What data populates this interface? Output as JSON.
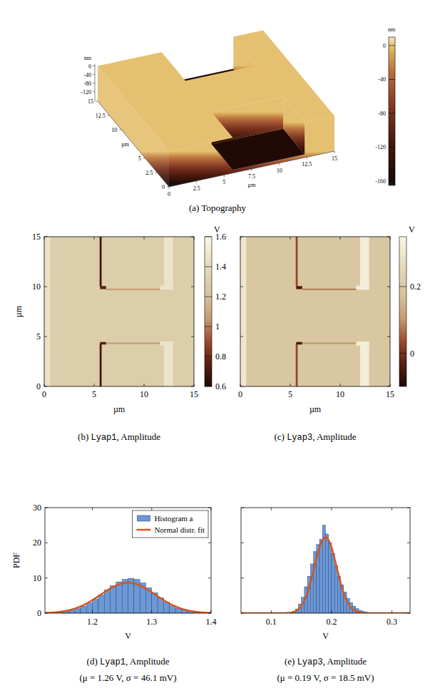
{
  "chart_data": [
    {
      "type": "surface",
      "title": "(a) Topography",
      "xlabel": "µm",
      "ylabel": "µm",
      "zlabel": "nm",
      "xlim": [
        0,
        15
      ],
      "ylim": [
        0,
        15
      ],
      "zlim": [
        -165,
        10
      ],
      "xticks": [
        0,
        2.5,
        5,
        7.5,
        10,
        12.5,
        15
      ],
      "yticks": [
        0,
        2.5,
        5,
        10,
        12.5,
        15
      ],
      "zticks": [
        0,
        -40,
        -80,
        -120
      ],
      "level": 0,
      "regions": [
        {
          "x": [
            5.8,
            12.3
          ],
          "y": [
            0,
            4.5
          ],
          "z": -150
        },
        {
          "x": [
            5.8,
            12.3
          ],
          "y": [
            10,
            15
          ],
          "z": -150
        }
      ],
      "colorbar_label": "nm",
      "colorbar_range": [
        -165,
        10
      ],
      "colorbar_ticks": [
        0,
        -40,
        -80,
        -120,
        -160
      ]
    },
    {
      "type": "heatmap",
      "title": "(b) Lyap1, Amplitude",
      "xlabel": "µm",
      "ylabel": "µm",
      "xlim": [
        0,
        15
      ],
      "ylim": [
        0,
        15
      ],
      "xticks": [
        0,
        5,
        10,
        15
      ],
      "yticks": [
        0,
        5,
        10,
        15
      ],
      "background": 1.3,
      "regions": [
        {
          "x": [
            0,
            0.6
          ],
          "y": [
            0,
            15
          ],
          "value": 1.45
        },
        {
          "x": [
            12,
            12.9
          ],
          "y": [
            0,
            4.5
          ],
          "value": 1.47
        },
        {
          "x": [
            11.6,
            12.9
          ],
          "y": [
            4.1,
            4.5
          ],
          "value": 1.47
        },
        {
          "x": [
            12,
            12.9
          ],
          "y": [
            9.7,
            15
          ],
          "value": 1.47
        },
        {
          "x": [
            11.6,
            12.9
          ],
          "y": [
            9.7,
            10.1
          ],
          "value": 1.47
        },
        {
          "x": [
            5.55,
            5.75
          ],
          "y": [
            0,
            4.3
          ],
          "value": 0.7
        },
        {
          "x": [
            5.6,
            6.2
          ],
          "y": [
            4.2,
            4.45
          ],
          "value": 0.75
        },
        {
          "x": [
            6.2,
            11.6
          ],
          "y": [
            4.25,
            4.4
          ],
          "value": 1.05
        },
        {
          "x": [
            5.55,
            5.75
          ],
          "y": [
            10,
            15
          ],
          "value": 0.7
        },
        {
          "x": [
            5.6,
            6.2
          ],
          "y": [
            9.75,
            10.05
          ],
          "value": 0.75
        },
        {
          "x": [
            6.2,
            11.6
          ],
          "y": [
            9.65,
            9.8
          ],
          "value": 1.05
        }
      ],
      "colorbar_label": "V",
      "colorbar_range": [
        0.6,
        1.6
      ],
      "colorbar_ticks": [
        0.6,
        0.8,
        1,
        1.2,
        1.4,
        1.6
      ]
    },
    {
      "type": "heatmap",
      "title": "(c) Lyap3, Amplitude",
      "xlabel": "µm",
      "tick_labels": "x",
      "xlim": [
        0,
        15
      ],
      "ylim": [
        0,
        15
      ],
      "xticks": [
        0,
        5,
        10,
        15
      ],
      "yticks": [
        0,
        5,
        10,
        15
      ],
      "background": 0.19,
      "regions": [
        {
          "x": [
            0,
            0.6
          ],
          "y": [
            0,
            15
          ],
          "value": 0.3
        },
        {
          "x": [
            12,
            12.9
          ],
          "y": [
            0,
            4.5
          ],
          "value": 0.32
        },
        {
          "x": [
            11.6,
            12.9
          ],
          "y": [
            4.1,
            4.5
          ],
          "value": 0.32
        },
        {
          "x": [
            12,
            12.9
          ],
          "y": [
            9.7,
            15
          ],
          "value": 0.32
        },
        {
          "x": [
            11.6,
            12.9
          ],
          "y": [
            9.7,
            10.1
          ],
          "value": 0.32
        },
        {
          "x": [
            5.55,
            5.75
          ],
          "y": [
            0,
            4.3
          ],
          "value": 0.03
        },
        {
          "x": [
            5.6,
            6.2
          ],
          "y": [
            4.2,
            4.45
          ],
          "value": -0.05
        },
        {
          "x": [
            6.2,
            11.6
          ],
          "y": [
            4.25,
            4.4
          ],
          "value": 0.1
        },
        {
          "x": [
            5.55,
            5.75
          ],
          "y": [
            10,
            15
          ],
          "value": 0.03
        },
        {
          "x": [
            5.6,
            6.2
          ],
          "y": [
            9.75,
            10.05
          ],
          "value": -0.05
        },
        {
          "x": [
            6.2,
            11.6
          ],
          "y": [
            9.65,
            9.8
          ],
          "value": 0.08
        }
      ],
      "colorbar_label": "V",
      "colorbar_range": [
        -0.1,
        0.35
      ],
      "colorbar_ticks": [
        0,
        0.2
      ]
    },
    {
      "type": "histogram",
      "title": "(d) Lyap1, Amplitude",
      "subtitle": "(μ = 1.26 V, σ = 46.1 mV)",
      "xlabel": "V",
      "ylabel": "PDF",
      "xlim": [
        1.12,
        1.4
      ],
      "ylim": [
        0,
        30
      ],
      "xticks": [
        1.2,
        1.3,
        1.4
      ],
      "yticks": [
        0,
        10,
        20,
        30
      ],
      "legend": "top right",
      "bins": [
        1.14,
        1.15,
        1.16,
        1.17,
        1.18,
        1.19,
        1.2,
        1.21,
        1.22,
        1.23,
        1.24,
        1.25,
        1.26,
        1.27,
        1.28,
        1.29,
        1.3,
        1.31,
        1.32,
        1.33,
        1.34,
        1.35,
        1.36,
        1.37,
        1.38,
        1.39
      ],
      "series": [
        {
          "name": "Histogram a",
          "type": "bar",
          "color": "#6b98d6",
          "values": [
            0.3,
            0.5,
            0.8,
            1.3,
            2.0,
            2.9,
            4.0,
            5.2,
            6.6,
            7.8,
            8.9,
            9.6,
            9.9,
            9.6,
            8.6,
            7.2,
            5.8,
            4.4,
            3.1,
            2.1,
            1.4,
            0.9,
            0.5,
            0.3,
            0.15
          ]
        },
        {
          "name": "Normal distr. fit",
          "type": "line",
          "color": "#d95319",
          "mu": 1.26,
          "sigma": 0.0461
        }
      ]
    },
    {
      "type": "histogram",
      "title": "(e) Lyap3, Amplitude",
      "subtitle": "(μ = 0.19 V, σ = 18.5 mV)",
      "xlabel": "V",
      "tick_labels": "x",
      "xlim": [
        0.05,
        0.33
      ],
      "ylim": [
        0,
        30
      ],
      "xticks": [
        0.1,
        0.2,
        0.3
      ],
      "yticks": [
        0,
        10,
        20,
        30
      ],
      "bins": [
        0.13,
        0.135,
        0.14,
        0.145,
        0.15,
        0.155,
        0.16,
        0.165,
        0.17,
        0.175,
        0.18,
        0.185,
        0.19,
        0.195,
        0.2,
        0.205,
        0.21,
        0.215,
        0.22,
        0.225,
        0.23,
        0.235,
        0.24,
        0.245,
        0.25,
        0.255,
        0.26
      ],
      "series": [
        {
          "type": "bar",
          "color": "#6b98d6",
          "values": [
            0.2,
            0.5,
            1.2,
            2.6,
            4.5,
            7.5,
            10.5,
            14,
            17.5,
            19.5,
            21,
            25,
            22.5,
            20,
            17,
            13.5,
            10.5,
            8,
            6,
            4.2,
            3,
            2,
            1.3,
            0.8,
            0.5,
            0.3
          ]
        },
        {
          "type": "line",
          "color": "#d95319",
          "mu": 0.19,
          "sigma": 0.0185
        }
      ]
    }
  ]
}
